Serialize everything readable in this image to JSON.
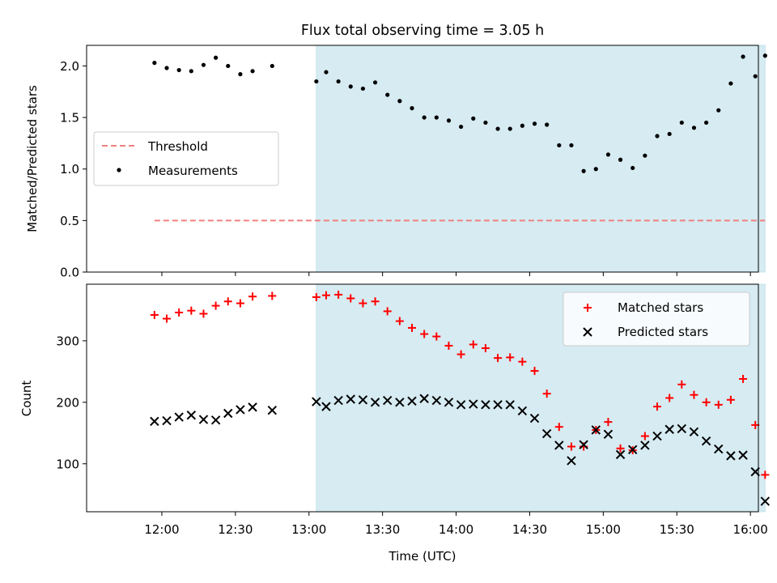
{
  "chart_data": [
    {
      "type": "scatter",
      "title": "Flux total observing time = 3.05 h",
      "xlabel": "",
      "ylabel": "Matched/Predicted stars",
      "ylim": [
        0.0,
        2.2
      ],
      "yticks": [
        "0.0",
        "0.5",
        "1.0",
        "1.5",
        "2.0"
      ],
      "shaded_span": {
        "start": "13:03",
        "end": "16:06",
        "color": "#add8e6"
      },
      "legend_position": "center-left",
      "threshold": {
        "name": "Threshold",
        "y": 0.5,
        "x_start": "11:57",
        "x_end": "16:06",
        "color": "#f08080"
      },
      "series": [
        {
          "name": "Measurements",
          "color": "#000000",
          "points": [
            [
              "11:57",
              2.03
            ],
            [
              "12:02",
              1.98
            ],
            [
              "12:07",
              1.96
            ],
            [
              "12:12",
              1.95
            ],
            [
              "12:17",
              2.01
            ],
            [
              "12:22",
              2.08
            ],
            [
              "12:27",
              2.0
            ],
            [
              "12:32",
              1.92
            ],
            [
              "12:37",
              1.95
            ],
            [
              "12:45",
              2.0
            ],
            [
              "13:03",
              1.85
            ],
            [
              "13:07",
              1.94
            ],
            [
              "13:12",
              1.85
            ],
            [
              "13:17",
              1.8
            ],
            [
              "13:22",
              1.78
            ],
            [
              "13:27",
              1.84
            ],
            [
              "13:32",
              1.72
            ],
            [
              "13:37",
              1.66
            ],
            [
              "13:42",
              1.59
            ],
            [
              "13:47",
              1.5
            ],
            [
              "13:52",
              1.5
            ],
            [
              "13:57",
              1.47
            ],
            [
              "14:02",
              1.41
            ],
            [
              "14:07",
              1.49
            ],
            [
              "14:12",
              1.45
            ],
            [
              "14:17",
              1.39
            ],
            [
              "14:22",
              1.39
            ],
            [
              "14:27",
              1.42
            ],
            [
              "14:32",
              1.44
            ],
            [
              "14:37",
              1.43
            ],
            [
              "14:42",
              1.23
            ],
            [
              "14:47",
              1.23
            ],
            [
              "14:52",
              0.98
            ],
            [
              "14:57",
              1.0
            ],
            [
              "15:02",
              1.14
            ],
            [
              "15:07",
              1.09
            ],
            [
              "15:12",
              1.01
            ],
            [
              "15:17",
              1.13
            ],
            [
              "15:22",
              1.32
            ],
            [
              "15:27",
              1.34
            ],
            [
              "15:32",
              1.45
            ],
            [
              "15:37",
              1.4
            ],
            [
              "15:42",
              1.45
            ],
            [
              "15:47",
              1.57
            ],
            [
              "15:52",
              1.83
            ],
            [
              "15:57",
              2.09
            ],
            [
              "16:02",
              1.9
            ],
            [
              "16:06",
              2.1
            ]
          ]
        }
      ]
    },
    {
      "type": "scatter",
      "title": "",
      "xlabel": "Time (UTC)",
      "ylabel": "Count",
      "ylim": [
        22,
        392
      ],
      "yticks": [
        "100",
        "200",
        "300"
      ],
      "xticks": [
        "12:00",
        "12:30",
        "13:00",
        "13:30",
        "14:00",
        "14:30",
        "15:00",
        "15:30",
        "16:00"
      ],
      "shaded_span": {
        "start": "13:03",
        "end": "16:06",
        "color": "#add8e6"
      },
      "legend_position": "top-right",
      "series": [
        {
          "name": "Matched stars",
          "marker": "+",
          "color": "#ff0000",
          "points": [
            [
              "11:57",
              342
            ],
            [
              "12:02",
              336
            ],
            [
              "12:07",
              346
            ],
            [
              "12:12",
              349
            ],
            [
              "12:17",
              344
            ],
            [
              "12:22",
              357
            ],
            [
              "12:27",
              364
            ],
            [
              "12:32",
              361
            ],
            [
              "12:37",
              372
            ],
            [
              "12:45",
              373
            ],
            [
              "13:03",
              371
            ],
            [
              "13:07",
              374
            ],
            [
              "13:12",
              375
            ],
            [
              "13:17",
              369
            ],
            [
              "13:22",
              361
            ],
            [
              "13:27",
              364
            ],
            [
              "13:32",
              348
            ],
            [
              "13:37",
              332
            ],
            [
              "13:42",
              321
            ],
            [
              "13:47",
              311
            ],
            [
              "13:52",
              307
            ],
            [
              "13:57",
              292
            ],
            [
              "14:02",
              278
            ],
            [
              "14:07",
              294
            ],
            [
              "14:12",
              288
            ],
            [
              "14:17",
              272
            ],
            [
              "14:22",
              273
            ],
            [
              "14:27",
              266
            ],
            [
              "14:32",
              251
            ],
            [
              "14:37",
              214
            ],
            [
              "14:42",
              160
            ],
            [
              "14:47",
              128
            ],
            [
              "14:52",
              128
            ],
            [
              "14:57",
              155
            ],
            [
              "15:02",
              168
            ],
            [
              "15:07",
              125
            ],
            [
              "15:12",
              122
            ],
            [
              "15:17",
              145
            ],
            [
              "15:22",
              193
            ],
            [
              "15:27",
              207
            ],
            [
              "15:32",
              229
            ],
            [
              "15:37",
              212
            ],
            [
              "15:42",
              200
            ],
            [
              "15:47",
              196
            ],
            [
              "15:52",
              204
            ],
            [
              "15:57",
              238
            ],
            [
              "16:02",
              163
            ],
            [
              "16:06",
              82
            ]
          ]
        },
        {
          "name": "Predicted stars",
          "marker": "x",
          "color": "#000000",
          "points": [
            [
              "11:57",
              169
            ],
            [
              "12:02",
              170
            ],
            [
              "12:07",
              176
            ],
            [
              "12:12",
              179
            ],
            [
              "12:17",
              172
            ],
            [
              "12:22",
              171
            ],
            [
              "12:27",
              182
            ],
            [
              "12:32",
              188
            ],
            [
              "12:37",
              192
            ],
            [
              "12:45",
              187
            ],
            [
              "13:03",
              201
            ],
            [
              "13:07",
              193
            ],
            [
              "13:12",
              203
            ],
            [
              "13:17",
              205
            ],
            [
              "13:22",
              204
            ],
            [
              "13:27",
              200
            ],
            [
              "13:32",
              203
            ],
            [
              "13:37",
              200
            ],
            [
              "13:42",
              202
            ],
            [
              "13:47",
              206
            ],
            [
              "13:52",
              203
            ],
            [
              "13:57",
              200
            ],
            [
              "14:02",
              196
            ],
            [
              "14:07",
              197
            ],
            [
              "14:12",
              196
            ],
            [
              "14:17",
              196
            ],
            [
              "14:22",
              196
            ],
            [
              "14:27",
              186
            ],
            [
              "14:32",
              174
            ],
            [
              "14:37",
              149
            ],
            [
              "14:42",
              130
            ],
            [
              "14:47",
              105
            ],
            [
              "14:52",
              131
            ],
            [
              "14:57",
              155
            ],
            [
              "15:02",
              148
            ],
            [
              "15:07",
              115
            ],
            [
              "15:12",
              123
            ],
            [
              "15:17",
              130
            ],
            [
              "15:22",
              145
            ],
            [
              "15:27",
              156
            ],
            [
              "15:32",
              157
            ],
            [
              "15:37",
              152
            ],
            [
              "15:42",
              137
            ],
            [
              "15:47",
              124
            ],
            [
              "15:52",
              113
            ],
            [
              "15:57",
              114
            ],
            [
              "16:02",
              87
            ],
            [
              "16:06",
              39
            ]
          ]
        }
      ]
    }
  ]
}
